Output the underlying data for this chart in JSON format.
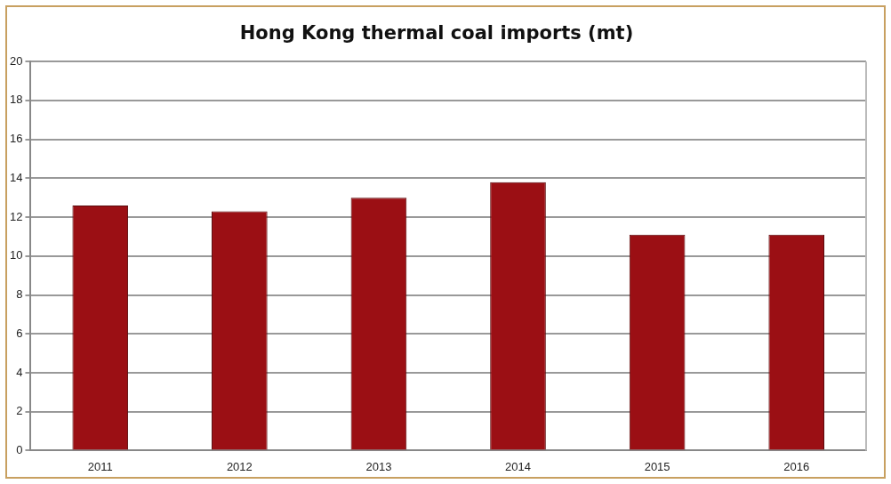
{
  "chart_data": {
    "type": "bar",
    "title": "Hong Kong thermal coal imports (mt)",
    "categories": [
      "2011",
      "2012",
      "2013",
      "2014",
      "2015",
      "2016"
    ],
    "values": [
      12.6,
      12.3,
      13.0,
      13.8,
      11.1,
      11.1
    ],
    "color": "#9b0f14",
    "ylim": [
      0,
      20
    ],
    "yticks": [
      0,
      2,
      4,
      6,
      8,
      10,
      12,
      14,
      16,
      18,
      20
    ],
    "grid": "y",
    "legend": false
  }
}
